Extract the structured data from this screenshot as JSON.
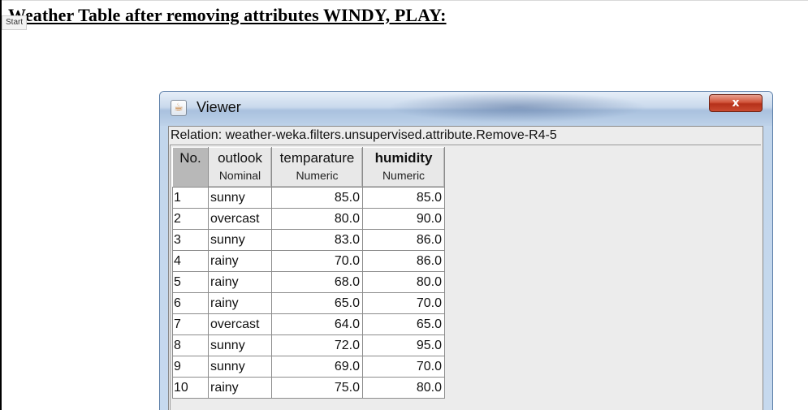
{
  "document": {
    "title": "Weather Table after removing attributes WINDY, PLAY:",
    "start_tag": "Start"
  },
  "viewer": {
    "title": "Viewer",
    "close_label": "x",
    "relation": "Relation: weather-weka.filters.unsupervised.attribute.Remove-R4-5",
    "columns": [
      {
        "name": "No.",
        "type": ""
      },
      {
        "name": "outlook",
        "type": "Nominal"
      },
      {
        "name": "temparature",
        "type": "Numeric"
      },
      {
        "name": "humidity",
        "type": "Numeric"
      }
    ],
    "rows": [
      [
        "1",
        "sunny",
        "85.0",
        "85.0"
      ],
      [
        "2",
        "overcast",
        "80.0",
        "90.0"
      ],
      [
        "3",
        "sunny",
        "83.0",
        "86.0"
      ],
      [
        "4",
        "rainy",
        "70.0",
        "86.0"
      ],
      [
        "5",
        "rainy",
        "68.0",
        "80.0"
      ],
      [
        "6",
        "rainy",
        "65.0",
        "70.0"
      ],
      [
        "7",
        "overcast",
        "64.0",
        "65.0"
      ],
      [
        "8",
        "sunny",
        "72.0",
        "95.0"
      ],
      [
        "9",
        "sunny",
        "69.0",
        "70.0"
      ],
      [
        "10",
        "rainy",
        "75.0",
        "80.0"
      ]
    ]
  },
  "icons": {
    "app_icon": "java-cup-icon",
    "close_icon": "close-icon"
  },
  "colors": {
    "close_button": "#c94a30",
    "no_column_header": "#b8b8b8"
  }
}
